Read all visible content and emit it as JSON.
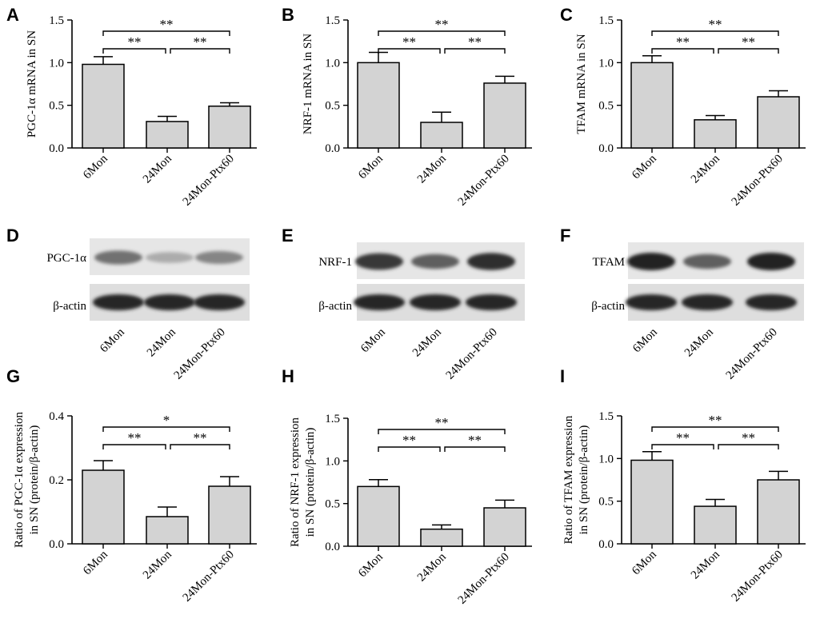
{
  "panel_labels": {
    "A": "A",
    "B": "B",
    "C": "C",
    "D": "D",
    "E": "E",
    "F": "F",
    "G": "G",
    "H": "H",
    "I": "I"
  },
  "blots": [
    {
      "label": "D",
      "target": "PGC-1α",
      "loading": "β-actin",
      "categories": [
        "6Mon",
        "24Mon",
        "24Mon-Ptx60"
      ],
      "target_intensity": [
        0.6,
        0.3,
        0.5
      ],
      "loading_intensity": [
        1.0,
        1.0,
        1.0
      ]
    },
    {
      "label": "E",
      "target": "NRF-1",
      "loading": "β-actin",
      "categories": [
        "6Mon",
        "24Mon",
        "24Mon-Ptx60"
      ],
      "target_intensity": [
        0.9,
        0.7,
        0.95
      ],
      "loading_intensity": [
        1.0,
        1.0,
        1.0
      ]
    },
    {
      "label": "F",
      "target": "TFAM",
      "loading": "β-actin",
      "categories": [
        "6Mon",
        "24Mon",
        "24Mon-Ptx60"
      ],
      "target_intensity": [
        1.0,
        0.7,
        1.0
      ],
      "loading_intensity": [
        1.0,
        1.0,
        1.0
      ]
    }
  ],
  "chart_data": [
    {
      "label": "A",
      "type": "bar",
      "categories": [
        "6Mon",
        "24Mon",
        "24Mon-Ptx60"
      ],
      "values": [
        0.98,
        0.31,
        0.49
      ],
      "errors": [
        0.09,
        0.06,
        0.04
      ],
      "ylabel": "PGC-1α mRNA in SN",
      "ylim": [
        0,
        1.5
      ],
      "yticks": [
        "0.0",
        "0.5",
        "1.0",
        "1.5"
      ],
      "significance": [
        {
          "from": 0,
          "to": 1,
          "text": "**"
        },
        {
          "from": 1,
          "to": 2,
          "text": "**"
        },
        {
          "from": 0,
          "to": 2,
          "text": "**"
        }
      ]
    },
    {
      "label": "B",
      "type": "bar",
      "categories": [
        "6Mon",
        "24Mon",
        "24Mon-Ptx60"
      ],
      "values": [
        1.0,
        0.3,
        0.76
      ],
      "errors": [
        0.12,
        0.12,
        0.08
      ],
      "ylabel": "NRF-1 mRNA in SN",
      "ylim": [
        0,
        1.5
      ],
      "yticks": [
        "0.0",
        "0.5",
        "1.0",
        "1.5"
      ],
      "significance": [
        {
          "from": 0,
          "to": 1,
          "text": "**"
        },
        {
          "from": 1,
          "to": 2,
          "text": "**"
        },
        {
          "from": 0,
          "to": 2,
          "text": "**"
        }
      ]
    },
    {
      "label": "C",
      "type": "bar",
      "categories": [
        "6Mon",
        "24Mon",
        "24Mon-Ptx60"
      ],
      "values": [
        1.0,
        0.33,
        0.6
      ],
      "errors": [
        0.08,
        0.05,
        0.07
      ],
      "ylabel": "TFAM mRNA in SN",
      "ylim": [
        0,
        1.5
      ],
      "yticks": [
        "0.0",
        "0.5",
        "1.0",
        "1.5"
      ],
      "significance": [
        {
          "from": 0,
          "to": 1,
          "text": "**"
        },
        {
          "from": 1,
          "to": 2,
          "text": "**"
        },
        {
          "from": 0,
          "to": 2,
          "text": "**"
        }
      ]
    },
    {
      "label": "G",
      "type": "bar",
      "categories": [
        "6Mon",
        "24Mon",
        "24Mon-Ptx60"
      ],
      "values": [
        0.23,
        0.085,
        0.18
      ],
      "errors": [
        0.03,
        0.03,
        0.03
      ],
      "ylabel": [
        "Ratio of PGC-1α expression",
        "in SN (protein/β-actin)"
      ],
      "ylim": [
        0,
        0.4
      ],
      "yticks": [
        "0.0",
        "0.2",
        "0.4"
      ],
      "significance": [
        {
          "from": 0,
          "to": 1,
          "text": "**"
        },
        {
          "from": 1,
          "to": 2,
          "text": "**"
        },
        {
          "from": 0,
          "to": 2,
          "text": "*"
        }
      ]
    },
    {
      "label": "H",
      "type": "bar",
      "categories": [
        "6Mon",
        "24Mon",
        "24Mon-Ptx60"
      ],
      "values": [
        0.7,
        0.2,
        0.45
      ],
      "errors": [
        0.08,
        0.05,
        0.09
      ],
      "ylabel": [
        "Ratio of NRF-1 expression",
        "in SN (protein/β-actin)"
      ],
      "ylim": [
        0,
        1.5
      ],
      "yticks": [
        "0.0",
        "0.5",
        "1.0",
        "1.5"
      ],
      "significance": [
        {
          "from": 0,
          "to": 1,
          "text": "**"
        },
        {
          "from": 1,
          "to": 2,
          "text": "**"
        },
        {
          "from": 0,
          "to": 2,
          "text": "**"
        }
      ]
    },
    {
      "label": "I",
      "type": "bar",
      "categories": [
        "6Mon",
        "24Mon",
        "24Mon-Ptx60"
      ],
      "values": [
        0.98,
        0.44,
        0.75
      ],
      "errors": [
        0.1,
        0.08,
        0.1
      ],
      "ylabel": [
        "Ratio of TFAM expression",
        "in SN (protein/β-actin)"
      ],
      "ylim": [
        0,
        1.5
      ],
      "yticks": [
        "0.0",
        "0.5",
        "1.0",
        "1.5"
      ],
      "significance": [
        {
          "from": 0,
          "to": 1,
          "text": "**"
        },
        {
          "from": 1,
          "to": 2,
          "text": "**"
        },
        {
          "from": 0,
          "to": 2,
          "text": "**"
        }
      ]
    }
  ]
}
